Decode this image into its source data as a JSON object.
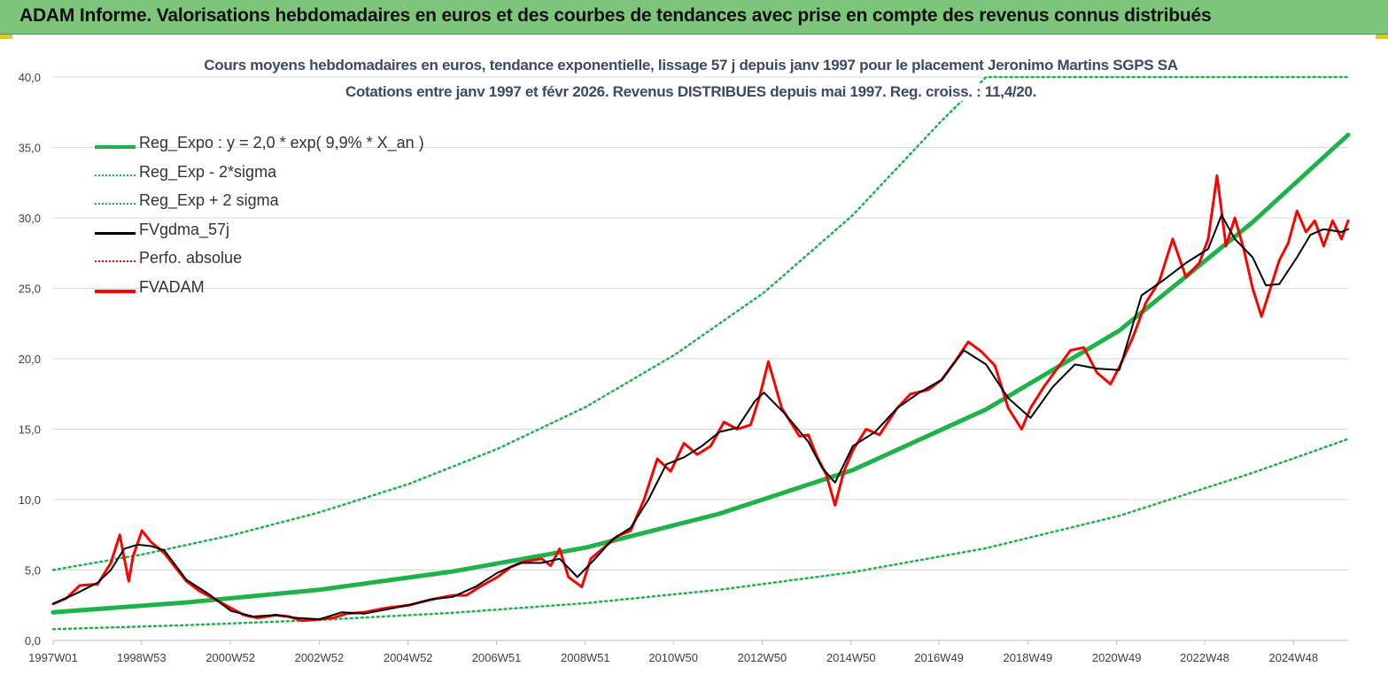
{
  "header": {
    "title": "ADAM Informe. Valorisations hebdomadaires en euros et des courbes de tendances avec prise en compte des revenus connus distribués"
  },
  "colors": {
    "header_bg": "#7cc57a",
    "green": "#1db349",
    "black": "#000000",
    "red": "#ff0000",
    "grid": "#d9d9d9"
  },
  "chart_data": {
    "type": "line",
    "title": "Cours moyens hebdomadaires en euros, tendance exponentielle, lissage 57 j depuis janv 1997  pour le placement Jeronimo Martins SGPS SA",
    "subtitle": "Cotations entre janv 1997 et févr 2026. Revenus DISTRIBUES depuis mai 1997. Reg. croiss. : 11,4/20.",
    "xlabel": "",
    "ylabel": "",
    "ylim": [
      0,
      40
    ],
    "y_ticks": [
      "0,0",
      "5,0",
      "10,0",
      "15,0",
      "20,0",
      "25,0",
      "30,0",
      "35,0",
      "40,0"
    ],
    "x_range": [
      1997.0,
      2026.15
    ],
    "x_ticks": [
      {
        "x": 1997.0,
        "label": "1997W01"
      },
      {
        "x": 1998.99,
        "label": "1998W53"
      },
      {
        "x": 2000.99,
        "label": "2000W52"
      },
      {
        "x": 2002.99,
        "label": "2002W52"
      },
      {
        "x": 2004.99,
        "label": "2004W52"
      },
      {
        "x": 2006.98,
        "label": "2006W51"
      },
      {
        "x": 2008.98,
        "label": "2008W51"
      },
      {
        "x": 2010.96,
        "label": "2010W50"
      },
      {
        "x": 2012.96,
        "label": "2012W50"
      },
      {
        "x": 2014.96,
        "label": "2014W50"
      },
      {
        "x": 2016.94,
        "label": "2016W49"
      },
      {
        "x": 2018.94,
        "label": "2018W49"
      },
      {
        "x": 2020.94,
        "label": "2020W49"
      },
      {
        "x": 2022.92,
        "label": "2022W48"
      },
      {
        "x": 2024.92,
        "label": "2024W48"
      }
    ],
    "grid": "horizontal",
    "legend_position": "top-left",
    "legend": [
      {
        "label": "Reg_Expo : y = 2,0 * exp( 9,9% *  X_an )",
        "color": "#1db349",
        "style": "solid-thick"
      },
      {
        "label": "Reg_Exp - 2*sigma",
        "color": "#1db349",
        "style": "dotted"
      },
      {
        "label": "Reg_Exp + 2 sigma",
        "color": "#1db349",
        "style": "dotted"
      },
      {
        "label": "FVgdma_57j",
        "color": "#000000",
        "style": "solid"
      },
      {
        "label": "Perfo. absolue",
        "color": "#ff0000",
        "style": "dotted"
      },
      {
        "label": "FVADAM",
        "color": "#ff0000",
        "style": "solid-thick"
      }
    ],
    "series": [
      {
        "name": "Reg_Expo : y = 2,0 * exp( 9,9% *  X_an )",
        "x": [
          1997.0,
          2000.0,
          2003.0,
          2006.0,
          2009.0,
          2012.0,
          2015.0,
          2018.0,
          2021.0,
          2024.0,
          2026.15
        ],
        "y": [
          2.0,
          2.7,
          3.6,
          4.9,
          6.6,
          9.0,
          12.1,
          16.4,
          22.0,
          29.7,
          35.9
        ]
      },
      {
        "name": "Reg_Exp - 2*sigma",
        "x": [
          1997.0,
          2000.0,
          2003.0,
          2006.0,
          2009.0,
          2012.0,
          2015.0,
          2018.0,
          2021.0,
          2024.0,
          2026.15
        ],
        "y": [
          0.8,
          1.08,
          1.45,
          1.96,
          2.65,
          3.6,
          4.85,
          6.55,
          8.85,
          11.9,
          14.3
        ]
      },
      {
        "name": "Reg_Exp + 2 sigma",
        "x": [
          1997.0,
          1999.0,
          2001.0,
          2003.0,
          2005.0,
          2007.0,
          2009.0,
          2011.0,
          2013.0,
          2015.0,
          2017.0,
          2018.0,
          2024.85,
          2026.15
        ],
        "y": [
          5.0,
          6.1,
          7.45,
          9.1,
          11.1,
          13.6,
          16.6,
          20.3,
          24.7,
          30.2,
          36.9,
          40.0,
          40.0,
          40.0
        ]
      },
      {
        "name": "FVgdma_57j",
        "x": [
          1997.0,
          1997.5,
          1998.0,
          1998.3,
          1998.6,
          1998.9,
          1999.2,
          1999.5,
          2000.0,
          2000.5,
          2001.0,
          2001.5,
          2002.0,
          2002.5,
          2003.0,
          2003.5,
          2004.0,
          2004.5,
          2005.0,
          2005.5,
          2006.0,
          2006.5,
          2007.0,
          2007.5,
          2008.0,
          2008.4,
          2008.8,
          2009.2,
          2009.6,
          2010.0,
          2010.4,
          2010.8,
          2011.2,
          2011.6,
          2012.0,
          2012.4,
          2012.8,
          2013.0,
          2013.5,
          2014.0,
          2014.3,
          2014.6,
          2015.0,
          2015.5,
          2016.0,
          2016.5,
          2017.0,
          2017.5,
          2018.0,
          2018.5,
          2019.0,
          2019.5,
          2020.0,
          2020.5,
          2021.0,
          2021.5,
          2022.0,
          2022.5,
          2023.0,
          2023.3,
          2023.6,
          2024.0,
          2024.3,
          2024.6,
          2025.0,
          2025.3,
          2025.6,
          2026.0,
          2026.15
        ],
        "y": [
          2.6,
          3.3,
          4.1,
          5.0,
          6.5,
          6.8,
          6.7,
          6.4,
          4.3,
          3.3,
          2.1,
          1.7,
          1.8,
          1.6,
          1.5,
          2.0,
          1.9,
          2.2,
          2.5,
          2.9,
          3.1,
          3.8,
          4.8,
          5.5,
          5.5,
          5.8,
          4.5,
          5.8,
          7.2,
          8.0,
          10.0,
          12.5,
          13.0,
          13.8,
          14.8,
          15.1,
          17.0,
          17.6,
          16.0,
          14.1,
          12.3,
          11.2,
          13.8,
          14.8,
          16.5,
          17.6,
          18.5,
          20.6,
          19.6,
          17.2,
          15.8,
          18.0,
          19.6,
          19.3,
          19.2,
          24.5,
          25.6,
          26.8,
          27.8,
          30.2,
          28.5,
          27.2,
          25.2,
          25.3,
          27.2,
          28.8,
          29.2,
          29.0,
          29.2
        ]
      },
      {
        "name": "FVADAM",
        "x": [
          1997.0,
          1997.3,
          1997.6,
          1998.0,
          1998.3,
          1998.5,
          1998.7,
          1998.8,
          1999.0,
          1999.2,
          1999.5,
          1999.8,
          2000.0,
          2000.3,
          2000.6,
          2001.0,
          2001.3,
          2001.6,
          2002.0,
          2002.3,
          2002.6,
          2003.0,
          2003.3,
          2003.6,
          2004.0,
          2004.5,
          2005.0,
          2005.5,
          2006.0,
          2006.3,
          2006.6,
          2007.0,
          2007.3,
          2007.6,
          2008.0,
          2008.2,
          2008.4,
          2008.6,
          2008.9,
          2009.1,
          2009.4,
          2009.7,
          2010.0,
          2010.3,
          2010.6,
          2010.9,
          2011.2,
          2011.5,
          2011.8,
          2012.1,
          2012.4,
          2012.7,
          2012.9,
          2013.1,
          2013.4,
          2013.8,
          2014.0,
          2014.2,
          2014.4,
          2014.6,
          2014.8,
          2015.0,
          2015.3,
          2015.6,
          2016.0,
          2016.3,
          2016.7,
          2017.0,
          2017.3,
          2017.6,
          2017.9,
          2018.2,
          2018.5,
          2018.8,
          2019.0,
          2019.3,
          2019.6,
          2019.9,
          2020.2,
          2020.5,
          2020.8,
          2021.0,
          2021.3,
          2021.6,
          2021.9,
          2022.2,
          2022.5,
          2022.8,
          2023.0,
          2023.2,
          2023.4,
          2023.6,
          2023.8,
          2024.0,
          2024.2,
          2024.4,
          2024.6,
          2024.8,
          2025.0,
          2025.2,
          2025.4,
          2025.6,
          2025.8,
          2026.0,
          2026.15
        ],
        "y": [
          2.6,
          3.0,
          3.9,
          4.0,
          5.5,
          7.5,
          4.2,
          6.0,
          7.8,
          7.0,
          6.2,
          5.0,
          4.2,
          3.5,
          3.0,
          2.3,
          1.8,
          1.6,
          1.8,
          1.7,
          1.4,
          1.5,
          1.6,
          1.9,
          2.0,
          2.3,
          2.5,
          2.9,
          3.2,
          3.2,
          3.8,
          4.5,
          5.2,
          5.6,
          5.8,
          5.3,
          6.5,
          4.5,
          3.8,
          5.8,
          6.6,
          7.4,
          7.8,
          10.0,
          12.9,
          12.0,
          14.0,
          13.2,
          13.8,
          15.5,
          15.0,
          15.3,
          17.3,
          19.8,
          16.5,
          14.5,
          14.6,
          13.0,
          11.8,
          9.6,
          12.0,
          13.5,
          15.0,
          14.6,
          16.5,
          17.5,
          17.8,
          18.5,
          19.8,
          21.2,
          20.5,
          19.5,
          16.5,
          15.0,
          16.5,
          18.0,
          19.3,
          20.6,
          20.8,
          19.0,
          18.2,
          19.4,
          21.5,
          24.0,
          25.5,
          28.5,
          25.8,
          26.8,
          28.5,
          33.0,
          28.0,
          30.0,
          27.8,
          25.0,
          23.0,
          25.0,
          27.0,
          28.2,
          30.5,
          29.0,
          29.8,
          28.0,
          29.8,
          28.5,
          29.8
        ]
      }
    ]
  }
}
